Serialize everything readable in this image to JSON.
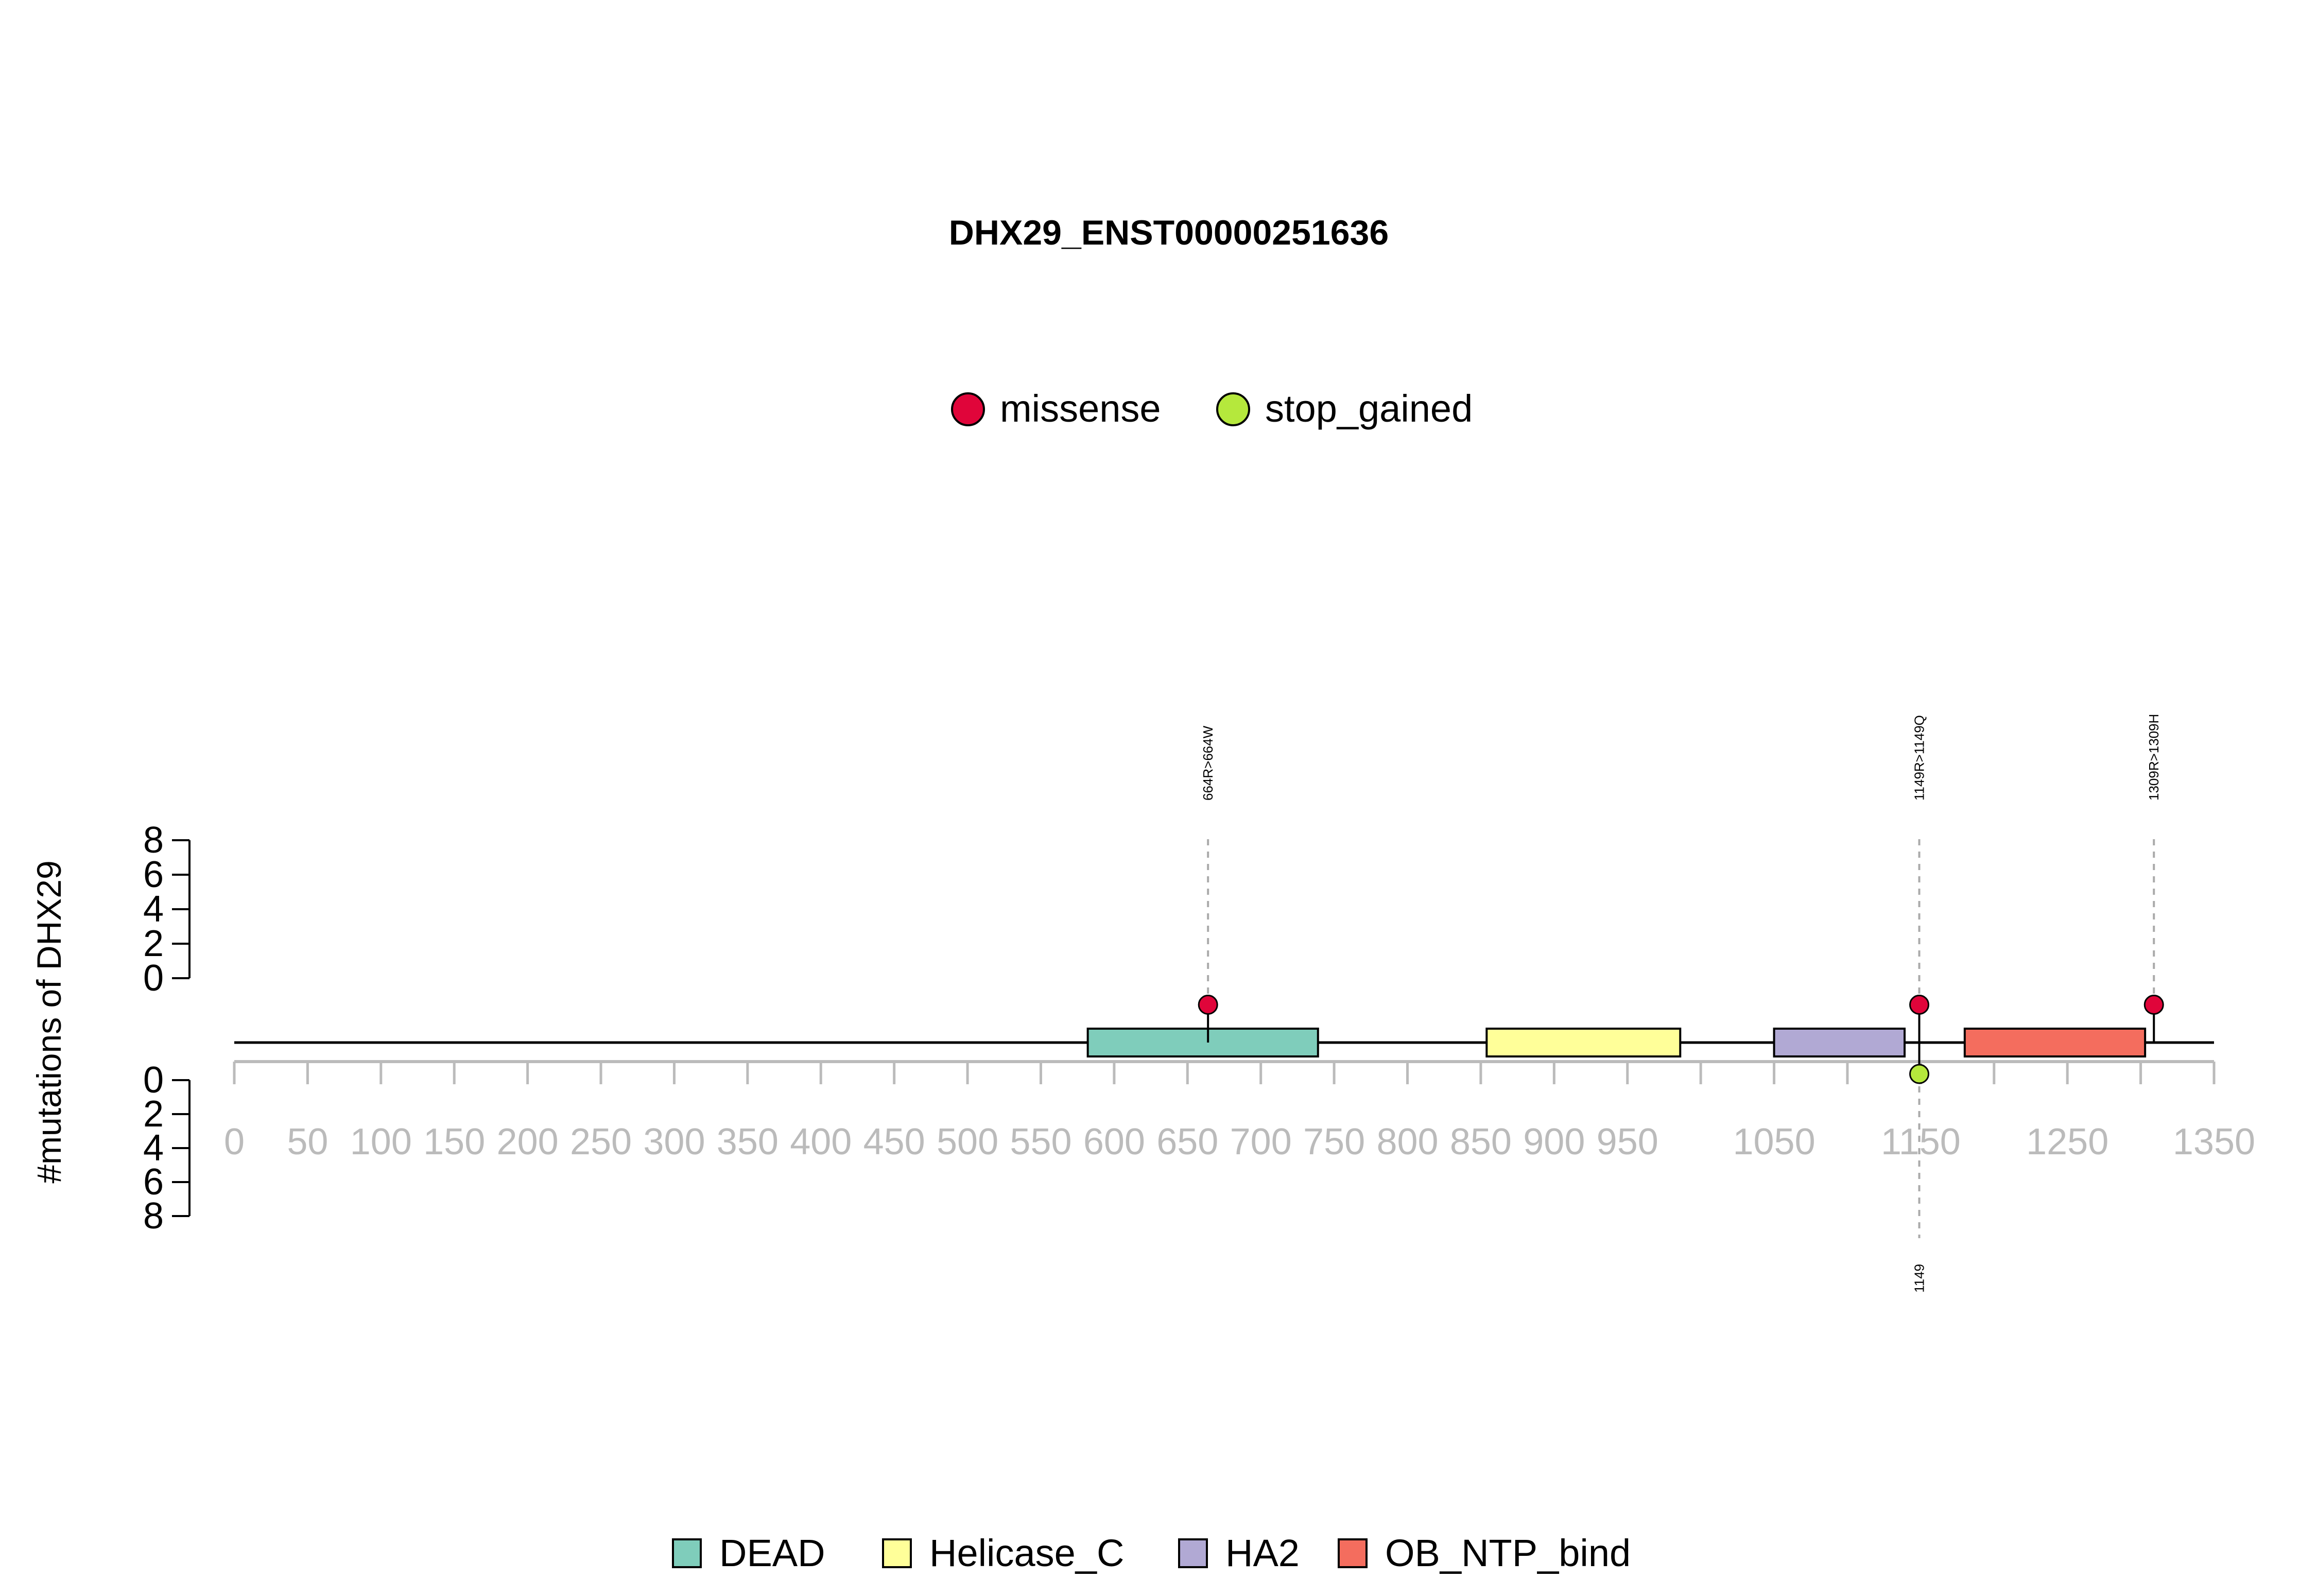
{
  "chart_data": {
    "type": "lollipop",
    "title": "DHX29_ENST00000251636",
    "ylabel": "#mutations of DHX29",
    "xlim": [
      0,
      1350
    ],
    "ylim_top": [
      0,
      8
    ],
    "ylim_bottom": [
      0,
      8
    ],
    "y_ticks": [
      "0",
      "2",
      "4",
      "6",
      "8"
    ],
    "x_ticks": [
      "0",
      "50",
      "100",
      "150",
      "200",
      "250",
      "300",
      "350",
      "400",
      "450",
      "500",
      "550",
      "600",
      "650",
      "700",
      "750",
      "800",
      "850",
      "900",
      "950",
      "1050",
      "1150",
      "1250",
      "1350"
    ],
    "x_ticks_minor": [
      1000,
      1100,
      1200,
      1300
    ],
    "mutation_legend": [
      {
        "label": "missense",
        "color": "#E0053A"
      },
      {
        "label": "stop_gained",
        "color": "#B5E83C"
      }
    ],
    "domains": [
      {
        "name": "DEAD",
        "start": 582,
        "end": 739,
        "color": "#7FCDBB"
      },
      {
        "name": "Helicase_C",
        "start": 854,
        "end": 986,
        "color": "#FFFF99"
      },
      {
        "name": "HA2",
        "start": 1050,
        "end": 1139,
        "color": "#B1A9D4"
      },
      {
        "name": "OB_NTP_bind",
        "start": 1180,
        "end": 1303,
        "color": "#F46D5E"
      }
    ],
    "mutations_top": [
      {
        "position": 664,
        "count": 1,
        "type": "missense",
        "label": "664R>664W"
      },
      {
        "position": 1149,
        "count": 1,
        "type": "missense",
        "label": "1149R>1149Q"
      },
      {
        "position": 1309,
        "count": 1,
        "type": "missense",
        "label": "1309R>1309H"
      }
    ],
    "mutations_bottom": [
      {
        "position": 1149,
        "count": 1,
        "type": "stop_gained",
        "label": "1149"
      }
    ]
  }
}
